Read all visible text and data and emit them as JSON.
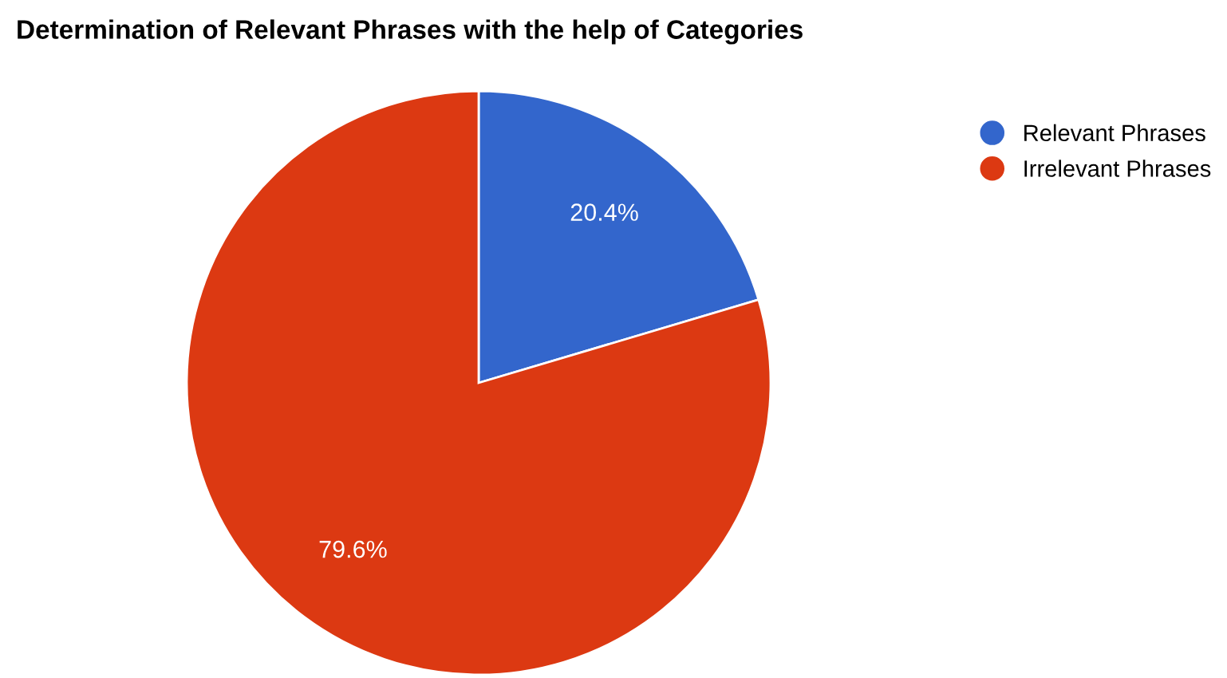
{
  "chart_data": {
    "type": "pie",
    "title": "Determination of Relevant Phrases with the help of Categories",
    "categories": [
      "Relevant Phrases",
      "Irrelevant Phrases"
    ],
    "values": [
      20.4,
      79.6
    ],
    "colors": [
      "#3366cc",
      "#dc3912"
    ],
    "value_labels": [
      "20.4%",
      "79.6%"
    ],
    "legend": "top right"
  }
}
